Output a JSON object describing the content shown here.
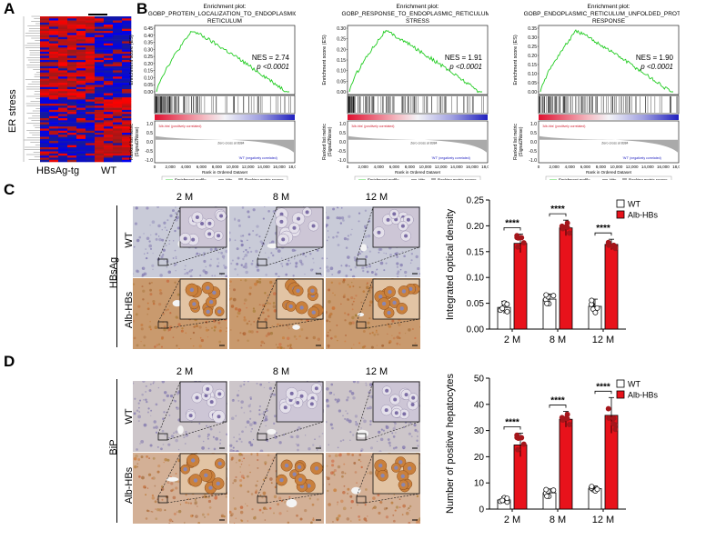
{
  "panel_labels": {
    "a": "A",
    "b": "B",
    "c": "C",
    "d": "D"
  },
  "panel_a": {
    "ylabel": "ER stress",
    "group_labels": [
      "HBsAg-tg",
      "WT"
    ]
  },
  "panel_b": {
    "plots": [
      {
        "title_line1": "Enrichment plot:",
        "title_line2": "GOBP_PROTEIN_LOCALIZATION_TO_ENDOPLASMIC_",
        "title_line3": "RETICULUM",
        "nes": "NES = 2.74",
        "p": "p <0.0001",
        "yticks": [
          "0.45",
          "0.40",
          "0.35",
          "0.30",
          "0.25",
          "0.20",
          "0.15",
          "0.10",
          "0.05",
          "0.00"
        ]
      },
      {
        "title_line1": "Enrichment plot:",
        "title_line2": "GOBP_RESPONSE_TO_ENDOPLASMIC_RETICULUM_",
        "title_line3": "STRESS",
        "nes": "NES = 1.91",
        "p": "p <0.0001",
        "yticks": [
          "0.30",
          "0.25",
          "0.20",
          "0.15",
          "0.10",
          "0.05",
          "0.00"
        ]
      },
      {
        "title_line1": "Enrichment plot:",
        "title_line2": "GOBP_ENDOPLASMIC_RETICULUM_UNFOLDED_PROTEIN_",
        "title_line3": "RESPONSE",
        "nes": "NES = 1.90",
        "p": "p <0.0001",
        "yticks": [
          "0.35",
          "0.30",
          "0.25",
          "0.20",
          "0.15",
          "0.10",
          "0.05",
          "0.00"
        ]
      }
    ],
    "es_ylabel": "Enrichment score (ES)",
    "rank_ylabel_1": "Ranked list metric",
    "rank_ylabel_2": "(Signal2Noise)",
    "rank_ticks": [
      "1.0",
      "0.5",
      "0.0",
      "-0.5",
      "-1.0"
    ],
    "pos_label": "'Alb-hbs' (positively correlated)",
    "neg_label": "'WT' (negatively correlated)",
    "zero_label": "Zero cross at 8384",
    "xlabel": "Rank in Ordered Dataset",
    "xticks": [
      "0",
      "2,000",
      "4,000",
      "6,000",
      "8,000",
      "10,000",
      "12,000",
      "14,000",
      "16,000",
      "18,000"
    ],
    "legend": [
      "Enrichment profile",
      "Hits",
      "Ranking metric scores"
    ]
  },
  "panel_c": {
    "row_group": "HBsAg",
    "rows": [
      "WT",
      "Alb-HBs"
    ],
    "columns": [
      "2 M",
      "8 M",
      "12 M"
    ]
  },
  "panel_d": {
    "row_group": "BiP",
    "rows": [
      "WT",
      "Alb-HBs"
    ],
    "columns": [
      "2 M",
      "8 M",
      "12 M"
    ]
  },
  "colors": {
    "wt": "#ffffff",
    "alb": "#e8121b",
    "dot_alb": "#a5161b",
    "es_line": "#22cc22"
  },
  "chart_data": [
    {
      "type": "bar",
      "ylabel": "Integrated optical density",
      "categories": [
        "2 M",
        "8 M",
        "12 M"
      ],
      "ylim": [
        0,
        0.25
      ],
      "yticks": [
        "0.00",
        "0.05",
        "0.10",
        "0.15",
        "0.20",
        "0.25"
      ],
      "significance": "****",
      "series": [
        {
          "name": "WT",
          "values": [
            0.042,
            0.058,
            0.044
          ],
          "errors": [
            0.012,
            0.01,
            0.014
          ]
        },
        {
          "name": "Alb-HBs",
          "values": [
            0.166,
            0.196,
            0.164
          ],
          "errors": [
            0.018,
            0.015,
            0.01
          ]
        }
      ]
    },
    {
      "type": "bar",
      "ylabel": "Number of positive hepatocytes",
      "categories": [
        "2 M",
        "8 M",
        "12 M"
      ],
      "ylim": [
        0,
        50
      ],
      "yticks": [
        "0",
        "10",
        "20",
        "30",
        "40",
        "50"
      ],
      "significance": "****",
      "series": [
        {
          "name": "WT",
          "values": [
            3.5,
            6.2,
            7.8
          ],
          "errors": [
            1.2,
            1.5,
            1.0
          ]
        },
        {
          "name": "Alb-HBs",
          "values": [
            24.5,
            34.3,
            35.8
          ],
          "errors": [
            4.5,
            3.0,
            6.8
          ]
        }
      ]
    }
  ]
}
